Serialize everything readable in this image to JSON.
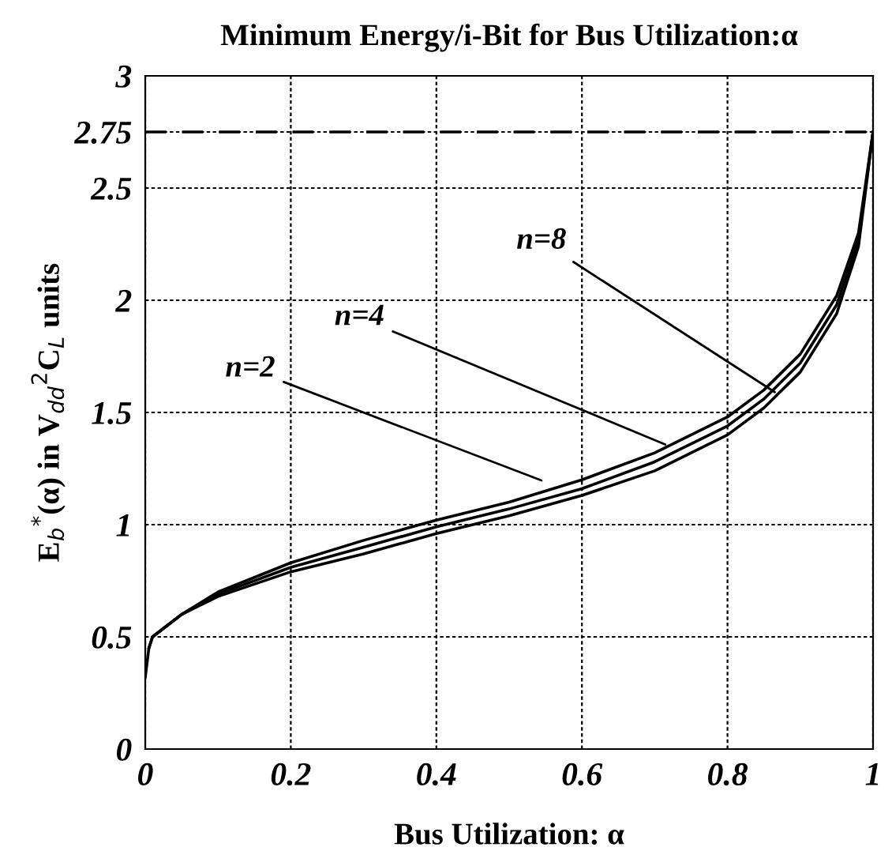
{
  "chart_data": {
    "type": "line",
    "title": "Minimum Energy/i-Bit for Bus Utilization:α",
    "xlabel": "Bus Utilization: α",
    "ylabel": "E$_{b}$$^{*}$(α) in V$_{dd}$$^{2}$C$_{L}$ units",
    "xlim": [
      0,
      1
    ],
    "ylim": [
      0,
      3
    ],
    "xticks": [
      0,
      0.2,
      0.4,
      0.6,
      0.8,
      1
    ],
    "yticks": [
      0,
      0.5,
      1,
      1.5,
      2,
      2.5,
      2.75,
      3
    ],
    "grid": true,
    "marker": "none",
    "line_style": "solid",
    "series": [
      {
        "color": "#000000",
        "x": [
          0,
          0.005,
          0.01,
          0.05,
          0.1,
          0.2,
          0.3,
          0.4,
          0.5,
          0.6,
          0.7,
          0.8,
          0.85,
          0.9,
          0.95,
          0.98,
          1
        ],
        "values": [
          0.32,
          0.45,
          0.5,
          0.6,
          0.7,
          0.83,
          0.93,
          1.02,
          1.1,
          1.2,
          1.32,
          1.48,
          1.6,
          1.76,
          2.02,
          2.3,
          2.75
        ]
      },
      {
        "color": "#000000",
        "x": [
          0.005,
          0.01,
          0.05,
          0.1,
          0.2,
          0.3,
          0.4,
          0.5,
          0.6,
          0.7,
          0.8,
          0.85,
          0.9,
          0.95,
          0.98,
          1
        ],
        "values": [
          0.45,
          0.5,
          0.6,
          0.69,
          0.81,
          0.9,
          0.99,
          1.07,
          1.16,
          1.28,
          1.44,
          1.56,
          1.72,
          1.98,
          2.27,
          2.75
        ]
      },
      {
        "color": "#000000",
        "x": [
          0.01,
          0.05,
          0.1,
          0.2,
          0.3,
          0.4,
          0.5,
          0.6,
          0.7,
          0.8,
          0.85,
          0.9,
          0.95,
          0.98,
          1
        ],
        "values": [
          0.5,
          0.6,
          0.68,
          0.79,
          0.87,
          0.96,
          1.04,
          1.13,
          1.24,
          1.4,
          1.52,
          1.68,
          1.94,
          2.24,
          2.75
        ]
      }
    ],
    "ref_lines": [
      {
        "axis": "y",
        "value": 2.75,
        "color": "#000000",
        "line_style": "dashed"
      }
    ],
    "annotations": [
      {
        "text": "n=2",
        "x": 0.55,
        "y": 1.19
      },
      {
        "text": "n=4",
        "x": 0.72,
        "y": 1.35
      },
      {
        "text": "n=8",
        "x": 0.87,
        "y": 1.58
      }
    ]
  }
}
